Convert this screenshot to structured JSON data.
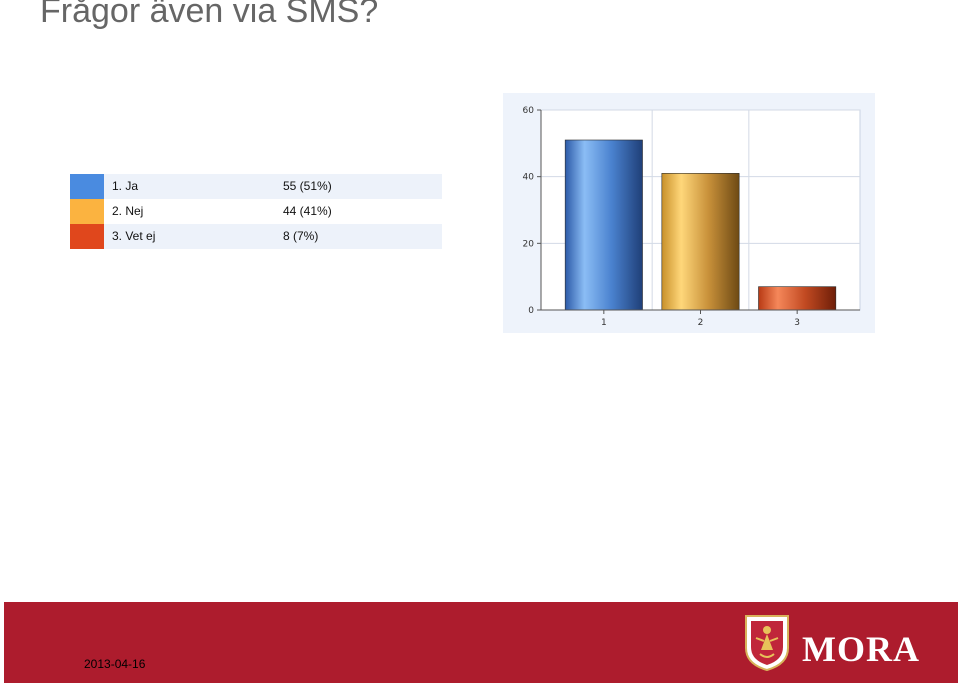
{
  "page": {
    "title": "Frågor även via SMS?"
  },
  "legend": [
    {
      "label": "1. Ja",
      "value": "55 (51%)",
      "color": "#4a8be0"
    },
    {
      "label": "2. Nej",
      "value": "44 (41%)",
      "color": "#fbb340"
    },
    {
      "label": "3. Vet ej",
      "value": "8 (7%)",
      "color": "#e0471c"
    }
  ],
  "chart_data": {
    "type": "bar",
    "categories": [
      "1",
      "2",
      "3"
    ],
    "values": [
      51,
      41,
      7
    ],
    "ylim": [
      0,
      60
    ],
    "yticks": [
      "0",
      "20",
      "40",
      "60"
    ],
    "grid": true,
    "colors": [
      "#4a8be0",
      "#fbb340",
      "#e0471c"
    ]
  },
  "footer": {
    "date": "2013-04-16",
    "logo_text": "MORA",
    "color": "#ad1c2d"
  }
}
